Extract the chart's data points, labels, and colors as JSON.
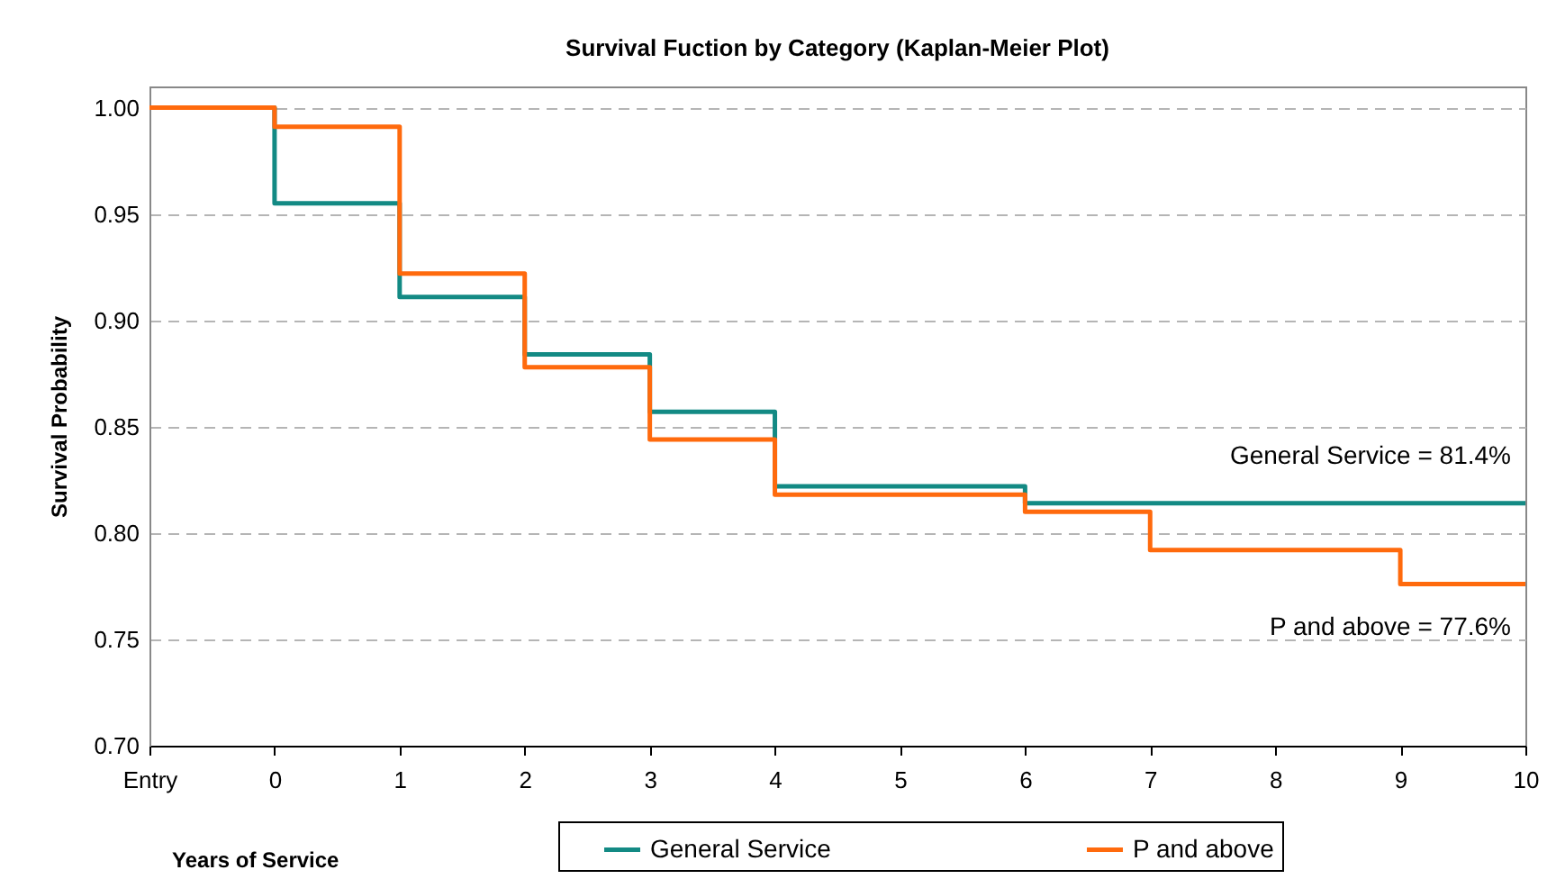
{
  "chart_data": {
    "type": "step",
    "title": "Survival Fuction by Category (Kaplan-Meier Plot)",
    "xlabel": "Years of Service",
    "ylabel": "Survival Probability",
    "series": [
      {
        "name": "General Service",
        "color": "#138a84",
        "x": [
          -1,
          0,
          1,
          2,
          3,
          4,
          6,
          10
        ],
        "values": [
          1,
          0.955,
          0.911,
          0.884,
          0.857,
          0.822,
          0.814,
          0.814
        ]
      },
      {
        "name": "P and above",
        "color": "#ff6a0d",
        "x": [
          -1,
          0,
          1,
          2,
          3,
          4,
          6,
          7,
          9,
          10
        ],
        "values": [
          1,
          0.991,
          0.922,
          0.878,
          0.844,
          0.818,
          0.81,
          0.792,
          0.776,
          0.776
        ]
      }
    ],
    "xlim": [
      -1,
      10
    ],
    "xticks": [
      {
        "value": -1,
        "label": "Entry"
      },
      0,
      1,
      2,
      3,
      4,
      5,
      6,
      7,
      8,
      9,
      {
        "value": 10,
        "label": "10"
      }
    ],
    "ylim": [
      0.7,
      1.01
    ],
    "yticks": [
      {
        "value": 0.7,
        "label": "0.70"
      },
      {
        "value": 0.75,
        "label": "0.75"
      },
      {
        "value": 0.8,
        "label": "0.80"
      },
      {
        "value": 0.85,
        "label": "0.85"
      },
      {
        "value": 0.9,
        "label": "0.90"
      },
      {
        "value": 0.95,
        "label": "0.95"
      },
      {
        "value": 1,
        "label": "1.00"
      }
    ],
    "annotations": [
      {
        "text": "General Service = 81.4%",
        "x": 10,
        "y": 0.814
      },
      {
        "text": "P and above = 77.6%",
        "x": 10,
        "y": 0.776
      }
    ],
    "grid": "y",
    "legend": "bottom",
    "line_style": "solid"
  }
}
